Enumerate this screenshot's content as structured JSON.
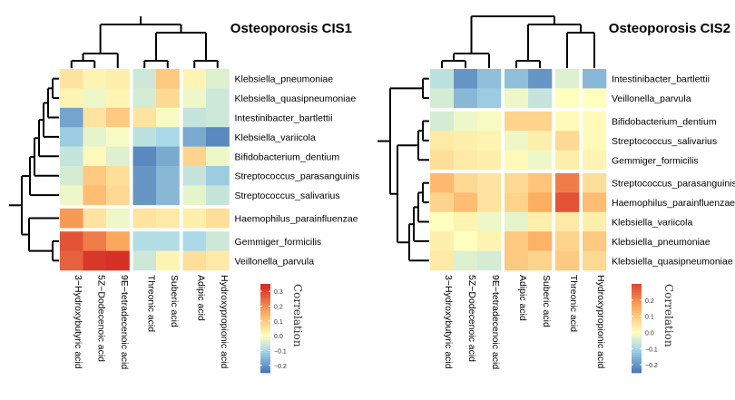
{
  "chart_data": [
    {
      "type": "heatmap",
      "title": "Osteoporosis CIS1",
      "columns": [
        "3−Hydroxybutyric acid",
        "5Z−Dodecenoic acid",
        "9E−tetradecenoic acid",
        "Threonic acid",
        "Suberic acid",
        "Adipic acid",
        "Hydroxypropionic acid"
      ],
      "rows": [
        "Klebsiella_pneumoniae",
        "Klebsiella_quasipneumoniae",
        "Intestinibacter_bartlettii",
        "Klebsiella_variicola",
        "Bifidobacterium_dentium",
        "Streptococcus_parasanguinis",
        "Streptococcus_salivarius",
        "Haemophilus_parainfluenzae",
        "Gemmiger_formicilis",
        "Veillonella_parvula"
      ],
      "values": [
        [
          0.05,
          0.02,
          0.03,
          -0.06,
          0.1,
          0.02,
          -0.04
        ],
        [
          0.02,
          -0.02,
          0.02,
          -0.05,
          0.07,
          -0.02,
          -0.06
        ],
        [
          -0.18,
          0.05,
          0.1,
          0.05,
          -0.01,
          -0.07,
          -0.06
        ],
        [
          -0.12,
          -0.03,
          -0.01,
          -0.08,
          -0.1,
          -0.17,
          -0.22
        ],
        [
          -0.07,
          0.01,
          -0.04,
          -0.22,
          -0.17,
          0.08,
          -0.02
        ],
        [
          -0.05,
          0.1,
          0.06,
          -0.2,
          -0.15,
          -0.07,
          -0.12
        ],
        [
          -0.02,
          0.12,
          0.07,
          -0.2,
          -0.15,
          -0.03,
          -0.07
        ],
        [
          0.18,
          0.05,
          -0.02,
          0.05,
          0.04,
          0.03,
          0.06
        ],
        [
          0.28,
          0.22,
          0.16,
          -0.09,
          -0.09,
          -0.1,
          -0.06
        ],
        [
          0.26,
          0.32,
          0.35,
          -0.06,
          0.02,
          0.06,
          0.04
        ]
      ],
      "col_groups": [
        3,
        2,
        2
      ],
      "row_groups": [
        7,
        1,
        2
      ],
      "legend": {
        "title": "Correlation",
        "ticks": [
          0.3,
          0.2,
          0.1,
          0.0,
          -0.1,
          -0.2
        ],
        "tick_labels": [
          "0.3",
          "0.2",
          "0.1",
          "0.0",
          "−0.1",
          "−0.2"
        ],
        "range": [
          -0.25,
          0.35
        ]
      }
    },
    {
      "type": "heatmap",
      "title": "Osteoporosis CIS2",
      "columns": [
        "3−Hydroxybutyric acid",
        "5Z−Dodecenoic acid",
        "9E−tetradecenoic acid",
        "Adipic acid",
        "Suberic acid",
        "Threonic acid",
        "Hydroxypropionic acid"
      ],
      "rows": [
        "Intestinibacter_bartlettii",
        "Veillonella_parvula",
        "Bifidobacterium_dentium",
        "Streptococcus_salivarius",
        "Gemmiger_formicilis",
        "Streptococcus_parasanguinis",
        "Haemophilus_parainfluenzae",
        "Klebsiella_variicola",
        "Klebsiella_pneumoniae",
        "Klebsiella_quasipneumoniae"
      ],
      "values": [
        [
          -0.08,
          -0.2,
          -0.14,
          -0.14,
          -0.2,
          -0.04,
          -0.15
        ],
        [
          -0.05,
          -0.15,
          -0.12,
          -0.02,
          -0.07,
          0.0,
          0.0
        ],
        [
          -0.05,
          -0.02,
          -0.01,
          0.08,
          0.08,
          0.01,
          0.01
        ],
        [
          0.04,
          0.03,
          0.02,
          -0.02,
          0.03,
          0.07,
          0.01
        ],
        [
          0.06,
          0.04,
          0.03,
          0.01,
          -0.02,
          0.03,
          0.02
        ],
        [
          0.13,
          0.07,
          0.05,
          0.07,
          0.11,
          0.22,
          0.06
        ],
        [
          0.08,
          0.12,
          0.05,
          0.08,
          0.15,
          0.28,
          0.12
        ],
        [
          0.0,
          0.02,
          -0.02,
          -0.03,
          0.03,
          0.04,
          0.03
        ],
        [
          0.03,
          0.0,
          0.02,
          0.1,
          0.14,
          0.08,
          0.1
        ],
        [
          0.04,
          -0.04,
          -0.05,
          0.1,
          0.08,
          0.1,
          0.07
        ]
      ],
      "col_groups": [
        3,
        2,
        1,
        1
      ],
      "row_groups": [
        2,
        3,
        5
      ],
      "legend": {
        "title": "Correlation",
        "ticks": [
          0.2,
          0.1,
          0.0,
          -0.1,
          -0.2
        ],
        "tick_labels": [
          "0.2",
          "0.1",
          "0.0",
          "−0.1",
          "−0.2"
        ],
        "range": [
          -0.25,
          0.3
        ]
      }
    }
  ],
  "colors": {
    "scale_negative": "#4575b4",
    "scale_mid_negative": "#abd9e9",
    "scale_zero": "#ffffbf",
    "scale_mid_positive": "#fdae61",
    "scale_positive": "#d73027"
  }
}
